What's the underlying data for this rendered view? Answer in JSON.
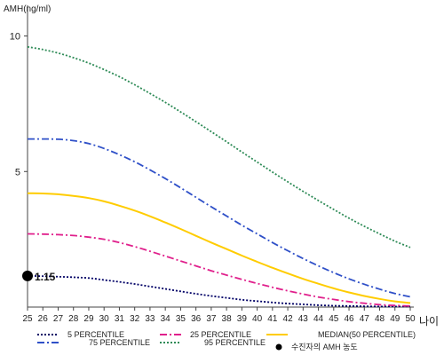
{
  "chart_data": {
    "type": "line",
    "ylabel": "AMH(ng/ml)",
    "xlabel": "나이",
    "xlim": [
      25,
      50
    ],
    "ylim": [
      0,
      11
    ],
    "x_ticks": [
      25,
      26,
      27,
      28,
      29,
      30,
      31,
      32,
      33,
      34,
      35,
      36,
      37,
      38,
      39,
      40,
      41,
      42,
      43,
      44,
      45,
      46,
      47,
      48,
      49,
      50
    ],
    "y_ticks": [
      5,
      10
    ],
    "x": [
      25,
      26,
      27,
      28,
      29,
      30,
      31,
      32,
      33,
      34,
      35,
      36,
      37,
      38,
      39,
      40,
      41,
      42,
      43,
      44,
      45,
      46,
      47,
      48,
      49,
      50
    ],
    "series": [
      {
        "key": "p5",
        "name": "5 PERCENTILE",
        "color": "#000066",
        "dash": "2,2",
        "values": [
          1.15,
          1.14,
          1.12,
          1.1,
          1.07,
          1.0,
          0.93,
          0.85,
          0.76,
          0.67,
          0.58,
          0.49,
          0.41,
          0.34,
          0.27,
          0.22,
          0.17,
          0.13,
          0.1,
          0.07,
          0.05,
          0.04,
          0.03,
          0.02,
          0.02,
          0.02
        ]
      },
      {
        "key": "p25",
        "name": "25 PERCENTILE",
        "color": "#e0208c",
        "dash": "8,3,2,3",
        "values": [
          2.7,
          2.69,
          2.67,
          2.64,
          2.58,
          2.5,
          2.38,
          2.23,
          2.06,
          1.88,
          1.7,
          1.52,
          1.34,
          1.18,
          1.02,
          0.87,
          0.73,
          0.6,
          0.48,
          0.37,
          0.28,
          0.2,
          0.14,
          0.09,
          0.06,
          0.04
        ]
      },
      {
        "key": "p50",
        "name": "MEDIAN(50 PERCENTILE)",
        "color": "#ffcc00",
        "dash": "",
        "values": [
          4.2,
          4.19,
          4.16,
          4.1,
          4.02,
          3.9,
          3.74,
          3.56,
          3.35,
          3.12,
          2.88,
          2.63,
          2.38,
          2.14,
          1.9,
          1.67,
          1.45,
          1.24,
          1.04,
          0.86,
          0.69,
          0.54,
          0.41,
          0.3,
          0.21,
          0.15
        ]
      },
      {
        "key": "p75",
        "name": "75 PERCENTILE",
        "color": "#2f50c8",
        "dash": "8,3,2,3",
        "values": [
          6.2,
          6.2,
          6.19,
          6.14,
          6.03,
          5.85,
          5.62,
          5.36,
          5.06,
          4.74,
          4.4,
          4.05,
          3.7,
          3.36,
          3.02,
          2.7,
          2.38,
          2.08,
          1.79,
          1.52,
          1.27,
          1.04,
          0.84,
          0.66,
          0.5,
          0.38
        ]
      },
      {
        "key": "p95",
        "name": "95 PERCENTILE",
        "color": "#2e8b57",
        "dash": "2,2",
        "values": [
          9.6,
          9.5,
          9.37,
          9.2,
          9.0,
          8.76,
          8.5,
          8.2,
          7.88,
          7.55,
          7.2,
          6.84,
          6.47,
          6.1,
          5.72,
          5.35,
          4.98,
          4.62,
          4.27,
          3.93,
          3.6,
          3.28,
          2.98,
          2.7,
          2.43,
          2.2
        ]
      }
    ],
    "patient_point": {
      "name": "수진자의 AMH 농도",
      "x": 25,
      "y": 1.15,
      "label": "1.15",
      "color": "#000000"
    },
    "legend": {
      "placement": "bottom",
      "items": [
        {
          "key": "p5",
          "label": "5 PERCENTILE"
        },
        {
          "key": "p25",
          "label": "25 PERCENTILE"
        },
        {
          "key": "p50",
          "label": "MEDIAN(50 PERCENTILE)"
        },
        {
          "key": "p75",
          "label": "75 PERCENTILE"
        },
        {
          "key": "p95",
          "label": "95 PERCENTILE"
        },
        {
          "key": "patient",
          "label": "수진자의 AMH 농도"
        }
      ]
    },
    "grid": false
  }
}
